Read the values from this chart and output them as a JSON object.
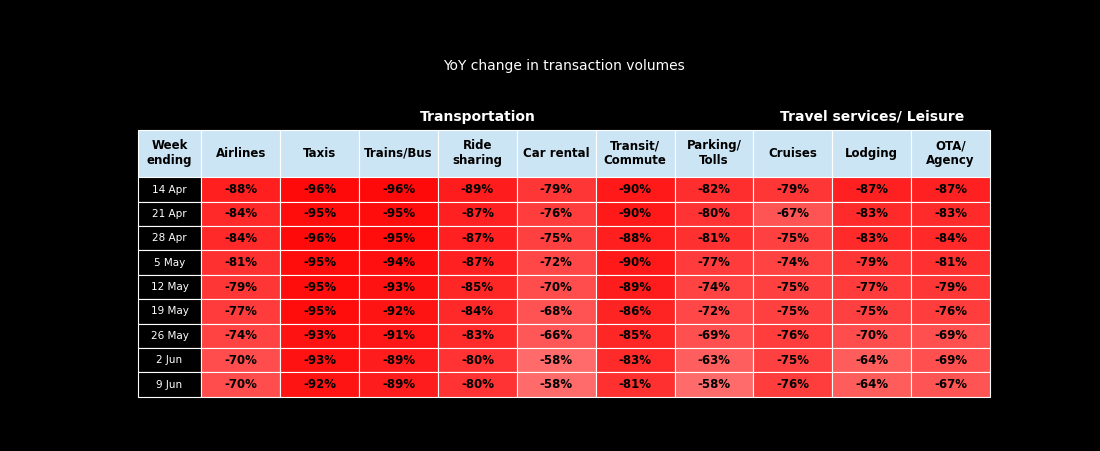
{
  "title": "YoY change in transaction volumes",
  "group_labels": [
    "Transportation",
    "Travel services/ Leisure"
  ],
  "col_headers": [
    "Week\nending",
    "Airlines",
    "Taxis",
    "Trains/Bus",
    "Ride\nsharing",
    "Car rental",
    "Transit/\nCommute",
    "Parking/\nTolls",
    "Cruises",
    "Lodging",
    "OTA/\nAgency"
  ],
  "row_labels": [
    "14 Apr",
    "21 Apr",
    "28 Apr",
    "5 May",
    "12 May",
    "19 May",
    "26 May",
    "2 Jun",
    "9 Jun"
  ],
  "data": [
    [
      -88,
      -96,
      -96,
      -89,
      -79,
      -90,
      -82,
      -79,
      -87,
      -87
    ],
    [
      -84,
      -95,
      -95,
      -87,
      -76,
      -90,
      -80,
      -67,
      -83,
      -83
    ],
    [
      -84,
      -96,
      -95,
      -87,
      -75,
      -88,
      -81,
      -75,
      -83,
      -84
    ],
    [
      -81,
      -95,
      -94,
      -87,
      -72,
      -90,
      -77,
      -74,
      -79,
      -81
    ],
    [
      -79,
      -95,
      -93,
      -85,
      -70,
      -89,
      -74,
      -75,
      -77,
      -79
    ],
    [
      -77,
      -95,
      -92,
      -84,
      -68,
      -86,
      -72,
      -75,
      -75,
      -76
    ],
    [
      -74,
      -93,
      -91,
      -83,
      -66,
      -85,
      -69,
      -76,
      -70,
      -69
    ],
    [
      -70,
      -93,
      -89,
      -80,
      -58,
      -83,
      -63,
      -75,
      -64,
      -69
    ],
    [
      -70,
      -92,
      -89,
      -80,
      -58,
      -81,
      -58,
      -76,
      -64,
      -67
    ]
  ],
  "header_bg": "#cce5f5",
  "background_color": "#000000",
  "title_color": "#ffffff",
  "row_label_color": "#ffffff",
  "group_text_color": "#ffffff",
  "cell_text_color": "#000000",
  "header_text_color": "#000000",
  "title_fontsize": 10,
  "group_fontsize": 10,
  "header_fontsize": 8.5,
  "data_fontsize": 8.5,
  "row_label_fontsize": 7.5
}
